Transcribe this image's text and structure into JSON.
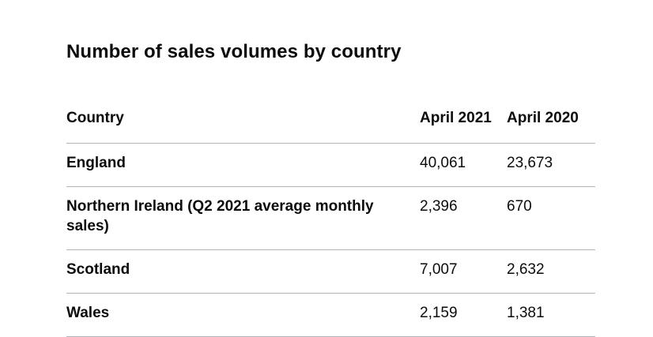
{
  "title": "Number of sales volumes by country",
  "table": {
    "columns": [
      "Country",
      "April 2021",
      "April 2020"
    ],
    "rows": [
      [
        "England",
        "40,061",
        "23,673"
      ],
      [
        "Northern Ireland (Q2 2021 average monthly sales)",
        "2,396",
        "670"
      ],
      [
        "Scotland",
        "7,007",
        "2,632"
      ],
      [
        "Wales",
        "2,159",
        "1,381"
      ]
    ]
  },
  "chart_data": {
    "type": "table",
    "title": "Number of sales volumes by country",
    "columns": [
      "Country",
      "April 2021",
      "April 2020"
    ],
    "rows": [
      [
        "England",
        40061,
        23673
      ],
      [
        "Northern Ireland (Q2 2021 average monthly sales)",
        2396,
        670
      ],
      [
        "Scotland",
        7007,
        2632
      ],
      [
        "Wales",
        2159,
        1381
      ]
    ]
  },
  "colors": {
    "text": "#0b0c0c",
    "border": "#b1b4b6",
    "background": "#ffffff"
  }
}
